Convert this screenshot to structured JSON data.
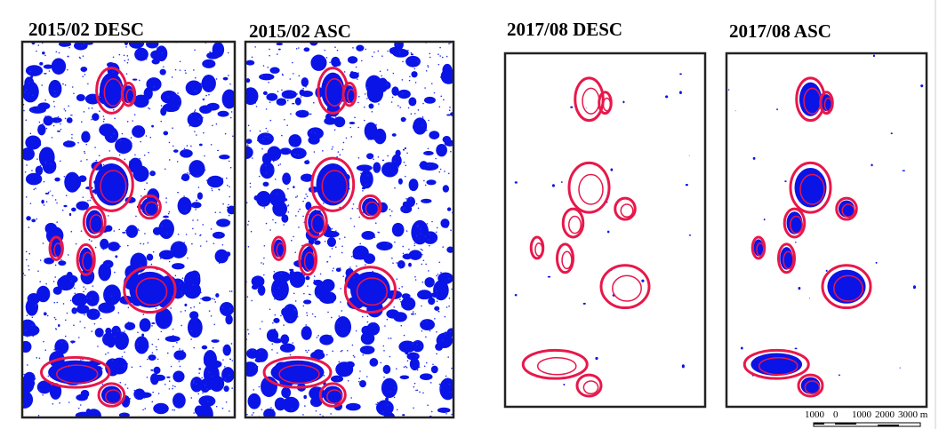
{
  "panels": [
    {
      "title": "2015/02 DESC"
    },
    {
      "title": "2015/02 ASC"
    },
    {
      "title": "2017/08 DESC"
    },
    {
      "title": "2017/08 ASC"
    }
  ],
  "scale_bar": {
    "labels": [
      "1000",
      "0",
      "1000",
      "2000",
      "3000 m"
    ]
  }
}
